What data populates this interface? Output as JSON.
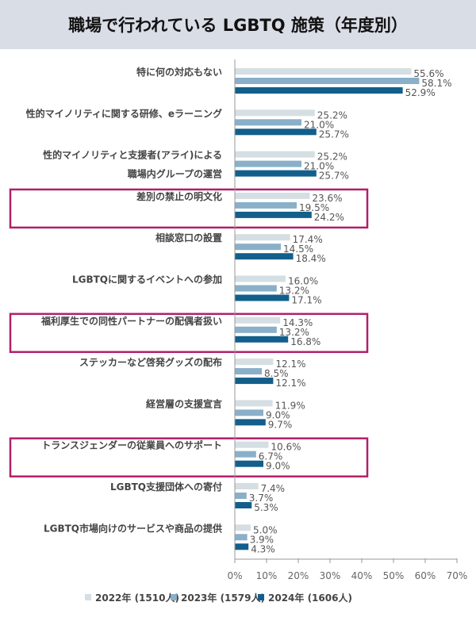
{
  "chart_data": {
    "type": "bar",
    "orientation": "horizontal",
    "title": "職場で行われている LGBTQ 施策（年度別）",
    "categories": [
      [
        "特に何の対応もない"
      ],
      [
        "性的マイノリティに関する研修、eラーニング"
      ],
      [
        "性的マイノリティと支援者(アライ)による",
        "職場内グループの運営"
      ],
      [
        "差別の禁止の明文化"
      ],
      [
        "相談窓口の設置"
      ],
      [
        "LGBTQに関するイベントへの参加"
      ],
      [
        "福利厚生での同性パートナーの配偶者扱い"
      ],
      [
        "ステッカーなど啓発グッズの配布"
      ],
      [
        "経営層の支援宣言"
      ],
      [
        "トランスジェンダーの従業員へのサポート"
      ],
      [
        "LGBTQ支援団体への寄付"
      ],
      [
        "LGBTQ市場向けのサービスや商品の提供"
      ]
    ],
    "highlighted": [
      3,
      6,
      9
    ],
    "highlight_color": "#b0206a",
    "series": [
      {
        "name": "2022年 (1510人)",
        "color": "#d5dfe3",
        "values": [
          55.6,
          25.2,
          25.2,
          23.6,
          17.4,
          16.0,
          14.3,
          12.1,
          11.9,
          10.6,
          7.4,
          5.0
        ]
      },
      {
        "name": "2023年 (1579人)",
        "color": "#8aafc9",
        "values": [
          58.1,
          21.0,
          21.0,
          19.5,
          14.5,
          13.2,
          13.2,
          8.5,
          9.0,
          6.7,
          3.7,
          3.9
        ]
      },
      {
        "name": "2024年 (1606人)",
        "color": "#135f8c",
        "values": [
          52.9,
          25.7,
          25.7,
          24.2,
          18.4,
          17.1,
          16.8,
          12.1,
          9.7,
          9.0,
          5.3,
          4.3
        ]
      }
    ],
    "xlim": [
      0,
      70
    ],
    "xticks": [
      "0%",
      "10%",
      "20%",
      "30%",
      "40%",
      "50%",
      "60%",
      "70%"
    ],
    "legend_position": "bottom",
    "grid": false
  }
}
